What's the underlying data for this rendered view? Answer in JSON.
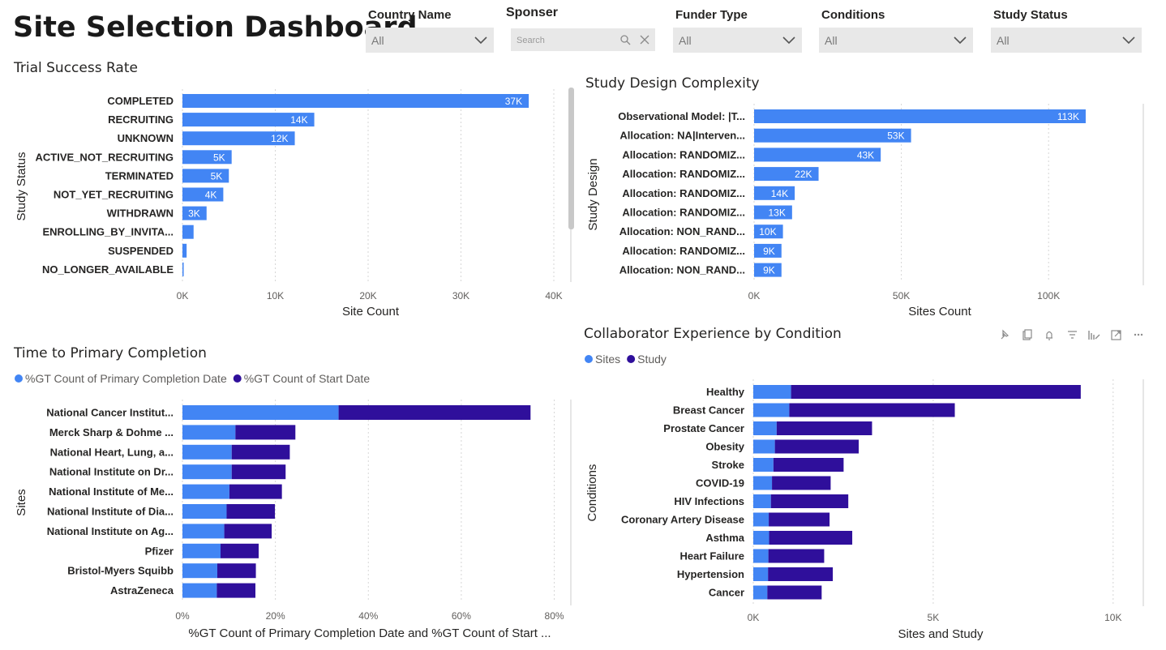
{
  "dashboard": {
    "title": "Site Selection Dashboard"
  },
  "slicers": {
    "country": {
      "label": "Country Name",
      "value": "All"
    },
    "sponsor": {
      "label": "Sponser",
      "placeholder": "Search"
    },
    "funder": {
      "label": "Funder Type",
      "value": "All"
    },
    "conditions": {
      "label": "Conditions",
      "value": "All"
    },
    "status": {
      "label": "Study Status",
      "value": "All"
    }
  },
  "colors": {
    "sites": "#4285f4",
    "study": "#2f0f9b",
    "bar": "#4285f4"
  },
  "chart_data": [
    {
      "id": "trial_success",
      "type": "bar",
      "orientation": "horizontal",
      "title": "Trial Success Rate",
      "xlabel": "Site Count",
      "ylabel": "Study Status",
      "categories": [
        "COMPLETED",
        "RECRUITING",
        "UNKNOWN",
        "ACTIVE_NOT_RECRUITING",
        "TERMINATED",
        "NOT_YET_RECRUITING",
        "WITHDRAWN",
        "ENROLLING_BY_INVITA...",
        "SUSPENDED",
        "NO_LONGER_AVAILABLE"
      ],
      "values": [
        37300,
        14200,
        12100,
        5300,
        5000,
        4400,
        2600,
        1200,
        450,
        120
      ],
      "labels": [
        "37K",
        "14K",
        "12K",
        "5K",
        "5K",
        "4K",
        "3K",
        "",
        "",
        ""
      ],
      "xlim": [
        0,
        40000
      ],
      "xticks": [
        "0K",
        "10K",
        "20K",
        "30K",
        "40K"
      ]
    },
    {
      "id": "design_complexity",
      "type": "bar",
      "orientation": "horizontal",
      "title": "Study Design Complexity",
      "xlabel": "Sites Count",
      "ylabel": "Study Design",
      "categories": [
        "Observational Model: |T...",
        "Allocation: NA|Interven...",
        "Allocation: RANDOMIZ...",
        "Allocation: RANDOMIZ...",
        "Allocation: RANDOMIZ...",
        "Allocation: RANDOMIZ...",
        "Allocation: NON_RAND...",
        "Allocation: RANDOMIZ...",
        "Allocation: NON_RAND..."
      ],
      "values": [
        112600,
        53300,
        43000,
        21900,
        13800,
        12900,
        9800,
        9300,
        9300
      ],
      "labels": [
        "113K",
        "53K",
        "43K",
        "22K",
        "14K",
        "13K",
        "10K",
        "9K",
        "9K"
      ],
      "xlim": [
        0,
        125000
      ],
      "xticks": [
        "0K",
        "50K",
        "100K"
      ]
    },
    {
      "id": "time_to_completion",
      "type": "bar",
      "orientation": "horizontal",
      "stacked": true,
      "title": "Time to Primary Completion",
      "xlabel": "%GT Count of Primary Completion Date and %GT Count of Start ...",
      "ylabel": "Sites",
      "legend": [
        "%GT Count of Primary Completion Date",
        "%GT Count of Start Date"
      ],
      "categories": [
        "National Cancer Institut...",
        "Merck Sharp & Dohme ...",
        "National Heart, Lung, a...",
        "National Institute on Dr...",
        "National Institute of Me...",
        "National Institute of Dia...",
        "National Institute on Ag...",
        "Pfizer",
        "Bristol-Myers Squibb",
        "AstraZeneca"
      ],
      "series": [
        {
          "name": "%GT Count of Primary Completion Date",
          "values": [
            33.6,
            11.4,
            10.6,
            10.6,
            10.1,
            9.5,
            9.0,
            8.2,
            7.5,
            7.4
          ]
        },
        {
          "name": "%GT Count of Start Date",
          "values": [
            41.3,
            12.9,
            12.5,
            11.6,
            11.3,
            10.4,
            10.2,
            8.2,
            8.3,
            8.3
          ]
        }
      ],
      "xlim": [
        0,
        82
      ],
      "xticks": [
        "0%",
        "20%",
        "40%",
        "60%",
        "80%"
      ]
    },
    {
      "id": "collab_experience",
      "type": "bar",
      "orientation": "horizontal",
      "stacked": true,
      "title": "Collaborator Experience by Condition",
      "xlabel": "Sites and Study",
      "ylabel": "Conditions",
      "legend": [
        "Sites",
        "Study"
      ],
      "categories": [
        "Healthy",
        "Breast Cancer",
        "Prostate Cancer",
        "Obesity",
        "Stroke",
        "COVID-19",
        "HIV Infections",
        "Coronary Artery Disease",
        "Asthma",
        "Heart Failure",
        "Hypertension",
        "Cancer"
      ],
      "series": [
        {
          "name": "Sites",
          "values": [
            1050,
            1000,
            650,
            600,
            560,
            520,
            490,
            430,
            440,
            420,
            410,
            390
          ]
        },
        {
          "name": "Study",
          "values": [
            8050,
            4600,
            2650,
            2330,
            1950,
            1630,
            2150,
            1690,
            2310,
            1550,
            1800,
            1510
          ]
        }
      ],
      "xlim": [
        0,
        10500
      ],
      "xticks": [
        "0K",
        "5K",
        "10K"
      ]
    }
  ]
}
